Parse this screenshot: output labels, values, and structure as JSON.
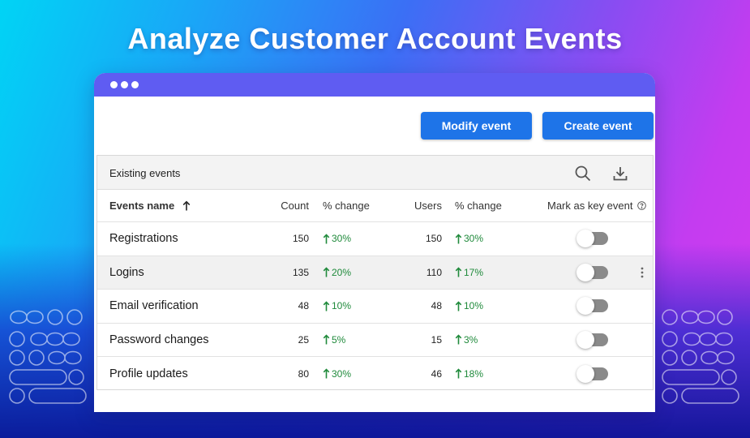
{
  "headline": "Analyze Customer Account Events",
  "toolbar": {
    "modify_label": "Modify event",
    "create_label": "Create event"
  },
  "panel": {
    "title": "Existing events",
    "search_icon": "search-icon",
    "download_icon": "download-icon"
  },
  "columns": {
    "name": "Events name",
    "count": "Count",
    "count_change": "% change",
    "users": "Users",
    "users_change": "% change",
    "key_event": "Mark as key event"
  },
  "rows": [
    {
      "name": "Registrations",
      "count": "150",
      "count_change": "30%",
      "users": "150",
      "users_change": "30%",
      "key_event": false
    },
    {
      "name": "Logins",
      "count": "135",
      "count_change": "20%",
      "users": "110",
      "users_change": "17%",
      "key_event": false
    },
    {
      "name": "Email verification",
      "count": "48",
      "count_change": "10%",
      "users": "48",
      "users_change": "10%",
      "key_event": false
    },
    {
      "name": "Password changes",
      "count": "25",
      "count_change": "5%",
      "users": "15",
      "users_change": "3%",
      "key_event": false
    },
    {
      "name": "Profile updates",
      "count": "80",
      "count_change": "30%",
      "users": "46",
      "users_change": "18%",
      "key_event": false
    }
  ],
  "colors": {
    "accent": "#1e74e8",
    "titlebar": "#5f5cf2",
    "positive": "#1f8a3b",
    "toggle_off": "#8a8a8a"
  }
}
